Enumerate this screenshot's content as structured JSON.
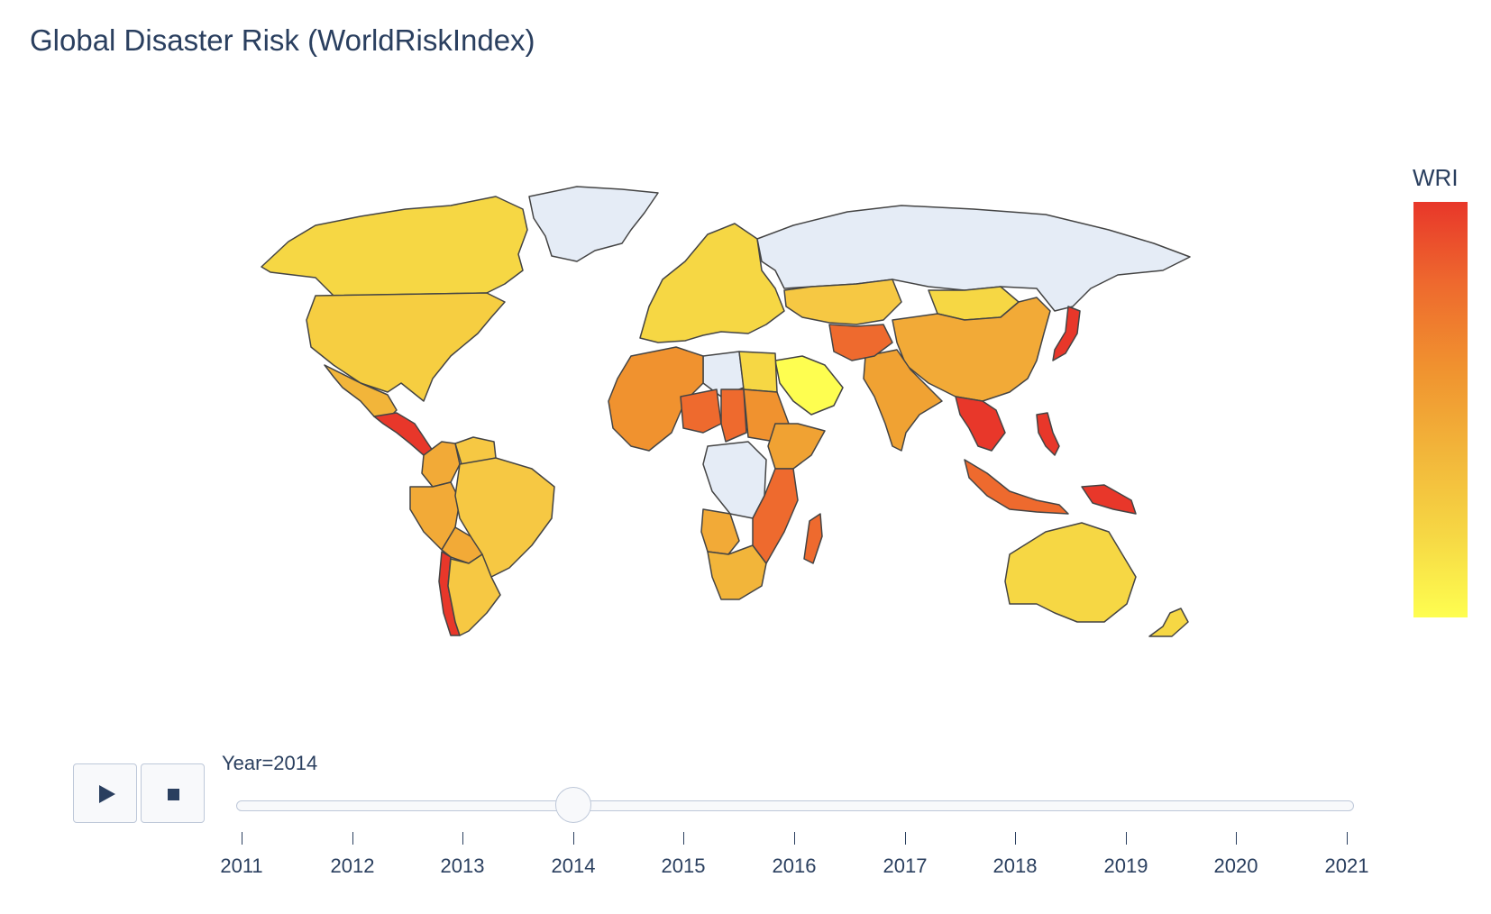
{
  "title": "Global Disaster Risk (WorldRiskIndex)",
  "colorbar": {
    "title": "WRI",
    "colors": [
      "#e8372a",
      "#ee6a2e",
      "#f0922f",
      "#f2b53a",
      "#f6d744",
      "#fefe50"
    ]
  },
  "map": {
    "no_data_color": "#e5ecf6",
    "border_color": "#444444",
    "regions": [
      {
        "name": "Greenland",
        "color": "#e5ecf6"
      },
      {
        "name": "Canada",
        "color": "#f6d744"
      },
      {
        "name": "United States",
        "color": "#f6ce41"
      },
      {
        "name": "Mexico",
        "color": "#f2b53a"
      },
      {
        "name": "Central America",
        "color": "#e8372a"
      },
      {
        "name": "Colombia",
        "color": "#f2aa37"
      },
      {
        "name": "Venezuela",
        "color": "#f6c843"
      },
      {
        "name": "Peru",
        "color": "#f2aa37"
      },
      {
        "name": "Brazil",
        "color": "#f6c843"
      },
      {
        "name": "Bolivia",
        "color": "#f2aa37"
      },
      {
        "name": "Chile",
        "color": "#e8372a"
      },
      {
        "name": "Argentina",
        "color": "#f6c843"
      },
      {
        "name": "Europe",
        "color": "#f6d744"
      },
      {
        "name": "Russia",
        "color": "#e5ecf6"
      },
      {
        "name": "Kazakhstan",
        "color": "#f6c843"
      },
      {
        "name": "Mongolia",
        "color": "#f6d744"
      },
      {
        "name": "China",
        "color": "#f2aa37"
      },
      {
        "name": "India",
        "color": "#f0a233"
      },
      {
        "name": "Afghanistan",
        "color": "#ee6a2e"
      },
      {
        "name": "Saudi Arabia",
        "color": "#fefe50"
      },
      {
        "name": "Libya",
        "color": "#e5ecf6"
      },
      {
        "name": "Egypt",
        "color": "#f6d744"
      },
      {
        "name": "West Africa",
        "color": "#f0922f"
      },
      {
        "name": "Niger",
        "color": "#ee6a2e"
      },
      {
        "name": "Chad",
        "color": "#ee6a2e"
      },
      {
        "name": "Sudan",
        "color": "#f0922f"
      },
      {
        "name": "Congo DR",
        "color": "#e5ecf6"
      },
      {
        "name": "Ethiopia",
        "color": "#f0a233"
      },
      {
        "name": "Angola",
        "color": "#f2aa37"
      },
      {
        "name": "Southern Africa",
        "color": "#f2b53a"
      },
      {
        "name": "Mozambique",
        "color": "#ee6a2e"
      },
      {
        "name": "Madagascar",
        "color": "#ee6a2e"
      },
      {
        "name": "Southeast Asia",
        "color": "#e8372a"
      },
      {
        "name": "Indonesia",
        "color": "#ee6a2e"
      },
      {
        "name": "Philippines",
        "color": "#e8372a"
      },
      {
        "name": "Papua New Guinea",
        "color": "#e8372a"
      },
      {
        "name": "Japan",
        "color": "#e8372a"
      },
      {
        "name": "Australia",
        "color": "#f6d744"
      },
      {
        "name": "New Zealand",
        "color": "#f6d744"
      }
    ]
  },
  "controls": {
    "play_icon": "play-icon",
    "stop_icon": "stop-icon",
    "current_label": "Year=2014",
    "current_year": 2014,
    "years": [
      "2011",
      "2012",
      "2013",
      "2014",
      "2015",
      "2016",
      "2017",
      "2018",
      "2019",
      "2020",
      "2021"
    ]
  }
}
